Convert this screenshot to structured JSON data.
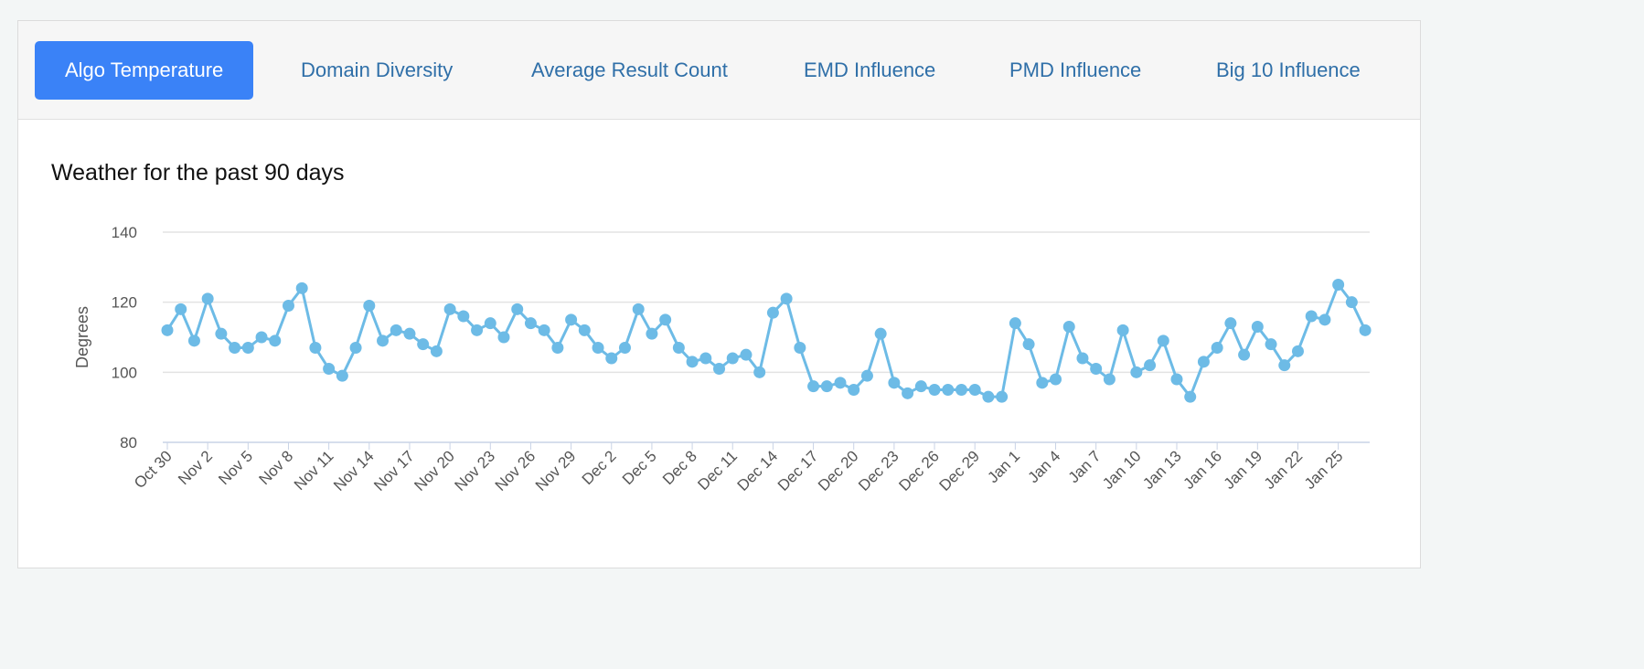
{
  "tabs": [
    {
      "label": "Algo Temperature",
      "active": true
    },
    {
      "label": "Domain Diversity",
      "active": false
    },
    {
      "label": "Average Result Count",
      "active": false
    },
    {
      "label": "EMD Influence",
      "active": false
    },
    {
      "label": "PMD Influence",
      "active": false
    },
    {
      "label": "Big 10 Influence",
      "active": false
    }
  ],
  "colors": {
    "accent": "#3a82f7",
    "tab_text": "#2f6fa8",
    "series": "#6dbbe6"
  },
  "chart_data": {
    "type": "line",
    "title": "Weather for the past 90 days",
    "xlabel": "",
    "ylabel": "Degrees",
    "ylim": [
      80,
      140
    ],
    "yticks": [
      80,
      100,
      120,
      140
    ],
    "grid": true,
    "x_tick_labels": [
      "Oct 30",
      "Nov 2",
      "Nov 5",
      "Nov 8",
      "Nov 11",
      "Nov 14",
      "Nov 17",
      "Nov 20",
      "Nov 23",
      "Nov 26",
      "Nov 29",
      "Dec 2",
      "Dec 5",
      "Dec 8",
      "Dec 11",
      "Dec 14",
      "Dec 17",
      "Dec 20",
      "Dec 23",
      "Dec 26",
      "Dec 29",
      "Jan 1",
      "Jan 4",
      "Jan 7",
      "Jan 10",
      "Jan 13",
      "Jan 16",
      "Jan 19",
      "Jan 22",
      "Jan 25"
    ],
    "tick_every": 3,
    "series": [
      {
        "name": "Degrees",
        "values": [
          112,
          118,
          109,
          121,
          111,
          107,
          107,
          110,
          109,
          119,
          124,
          107,
          101,
          99,
          107,
          119,
          109,
          112,
          111,
          108,
          106,
          118,
          116,
          112,
          114,
          110,
          118,
          114,
          112,
          107,
          115,
          112,
          107,
          104,
          107,
          118,
          111,
          115,
          107,
          103,
          104,
          101,
          104,
          105,
          100,
          117,
          121,
          107,
          96,
          96,
          97,
          95,
          99,
          111,
          97,
          94,
          96,
          95,
          95,
          95,
          95,
          93,
          93,
          114,
          108,
          97,
          98,
          113,
          104,
          101,
          98,
          112,
          100,
          102,
          109,
          98,
          93,
          103,
          107,
          114,
          105,
          113,
          108,
          102,
          106,
          116,
          115,
          125,
          120,
          112
        ]
      }
    ]
  }
}
